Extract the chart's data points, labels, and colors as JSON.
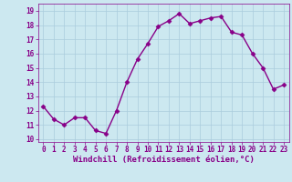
{
  "x": [
    0,
    1,
    2,
    3,
    4,
    5,
    6,
    7,
    8,
    9,
    10,
    11,
    12,
    13,
    14,
    15,
    16,
    17,
    18,
    19,
    20,
    21,
    22,
    23
  ],
  "y": [
    12.3,
    11.4,
    11.0,
    11.5,
    11.5,
    10.6,
    10.4,
    12.0,
    14.0,
    15.6,
    16.7,
    17.9,
    18.3,
    18.8,
    18.1,
    18.3,
    18.5,
    18.6,
    17.5,
    17.3,
    16.0,
    15.0,
    13.5,
    13.8
  ],
  "line_color": "#880088",
  "marker": "D",
  "marker_size": 2.5,
  "bg_color": "#cce8f0",
  "grid_color": "#aaccdd",
  "xlabel": "Windchill (Refroidissement éolien,°C)",
  "xlim": [
    -0.5,
    23.5
  ],
  "ylim": [
    9.8,
    19.5
  ],
  "yticks": [
    10,
    11,
    12,
    13,
    14,
    15,
    16,
    17,
    18,
    19
  ],
  "xticks": [
    0,
    1,
    2,
    3,
    4,
    5,
    6,
    7,
    8,
    9,
    10,
    11,
    12,
    13,
    14,
    15,
    16,
    17,
    18,
    19,
    20,
    21,
    22,
    23
  ],
  "tick_label_size": 5.5,
  "xlabel_size": 6.5,
  "line_width": 1.0
}
